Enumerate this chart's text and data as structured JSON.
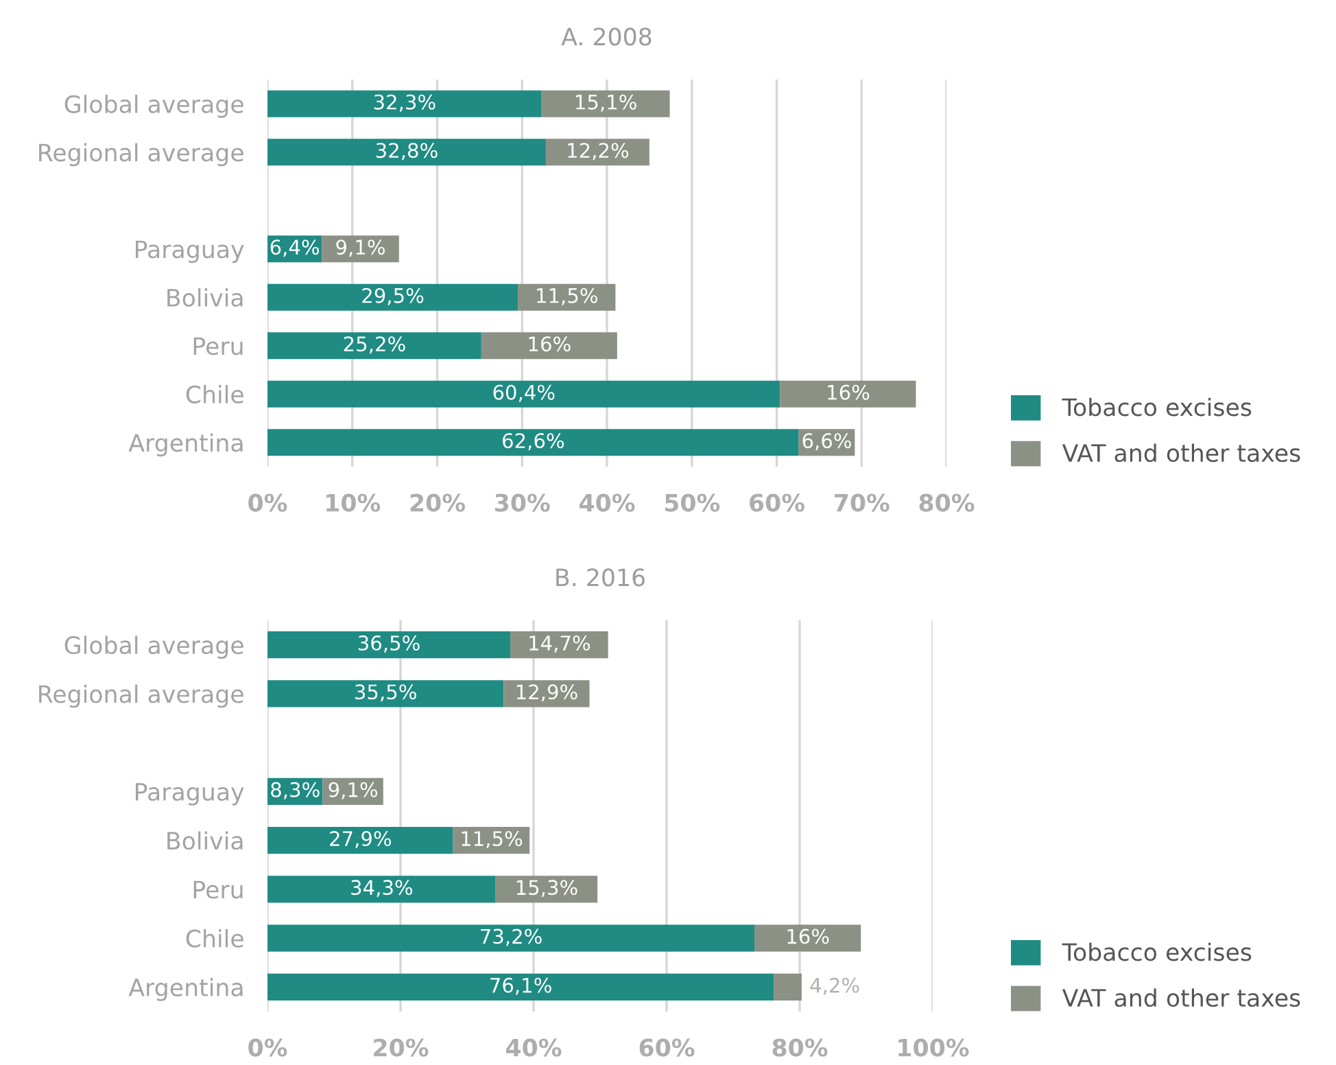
{
  "chart_data": [
    {
      "type": "bar",
      "orientation": "horizontal",
      "stacked": true,
      "title": "A. 2008",
      "categories": [
        "Global average",
        "Regional average",
        null,
        "Paraguay",
        "Bolivia",
        "Peru",
        "Chile",
        "Argentina"
      ],
      "series": [
        {
          "name": "Tobacco excises",
          "color": "#1f8b83",
          "values": [
            32.3,
            32.8,
            null,
            6.4,
            29.5,
            25.2,
            60.4,
            62.6
          ],
          "value_labels": [
            "32,3%",
            "32,8%",
            null,
            "6,4%",
            "29,5%",
            "25,2%",
            "60,4%",
            "62,6%"
          ]
        },
        {
          "name": "VAT and other taxes",
          "color": "#8b9184",
          "values": [
            15.1,
            12.2,
            null,
            9.1,
            11.5,
            16,
            16,
            6.6
          ],
          "value_labels": [
            "15,1%",
            "12,2%",
            null,
            "9,1%",
            "11,5%",
            "16%",
            "16%",
            "6,6%"
          ]
        }
      ],
      "xlim": [
        0,
        80
      ],
      "xticks": [
        {
          "value": 0,
          "label": "0%"
        },
        {
          "value": 10,
          "label": "10%"
        },
        {
          "value": 20,
          "label": "20%"
        },
        {
          "value": 30,
          "label": "30%"
        },
        {
          "value": 40,
          "label": "40%"
        },
        {
          "value": 50,
          "label": "50%"
        },
        {
          "value": 60,
          "label": "60%"
        },
        {
          "value": 70,
          "label": "70%"
        },
        {
          "value": 80,
          "label": "80%"
        }
      ],
      "grid": "x",
      "legend": "bottom right"
    },
    {
      "type": "bar",
      "orientation": "horizontal",
      "stacked": true,
      "title": "B. 2016",
      "categories": [
        "Global average",
        "Regional average",
        null,
        "Paraguay",
        "Bolivia",
        "Peru",
        "Chile",
        "Argentina"
      ],
      "series": [
        {
          "name": "Tobacco excises",
          "color": "#1f8b83",
          "values": [
            36.5,
            35.5,
            null,
            8.3,
            27.9,
            34.3,
            73.2,
            76.1
          ],
          "value_labels": [
            "36,5%",
            "35,5%",
            null,
            "8,3%",
            "27,9%",
            "34,3%",
            "73,2%",
            "76,1%"
          ]
        },
        {
          "name": "VAT and other taxes",
          "color": "#8b9184",
          "values": [
            14.7,
            12.9,
            null,
            9.1,
            11.5,
            15.3,
            16,
            4.2
          ],
          "value_labels": [
            "14,7%",
            "12,9%",
            null,
            "9,1%",
            "11,5%",
            "15,3%",
            "16%",
            "4,2%"
          ]
        }
      ],
      "xlim": [
        0,
        100
      ],
      "xticks": [
        {
          "value": 0,
          "label": "0%"
        },
        {
          "value": 20,
          "label": "20%"
        },
        {
          "value": 40,
          "label": "40%"
        },
        {
          "value": 60,
          "label": "60%"
        },
        {
          "value": 80,
          "label": "80%"
        },
        {
          "value": 100,
          "label": "100%"
        }
      ],
      "grid": "x",
      "legend": "bottom right"
    }
  ]
}
